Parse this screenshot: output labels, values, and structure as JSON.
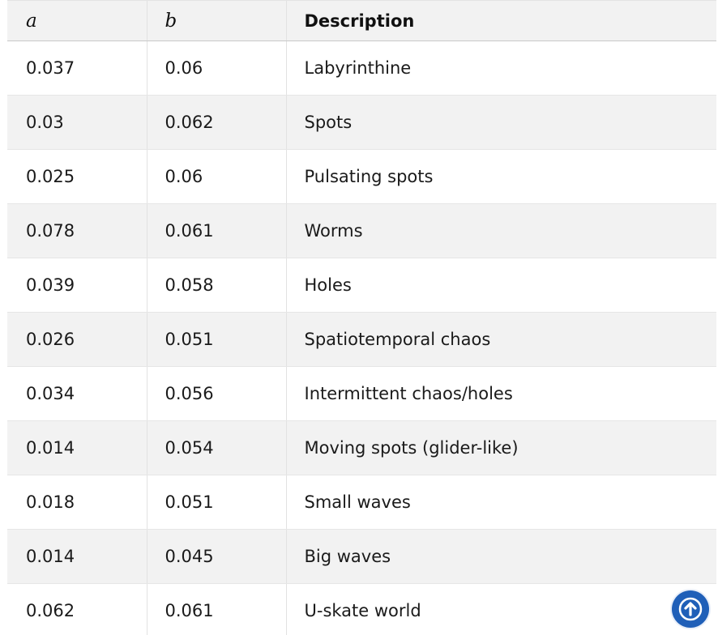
{
  "table": {
    "headers": [
      "a",
      "b",
      "Description"
    ],
    "rows": [
      [
        "0.037",
        "0.06",
        "Labyrinthine"
      ],
      [
        "0.03",
        "0.062",
        "Spots"
      ],
      [
        "0.025",
        "0.06",
        "Pulsating spots"
      ],
      [
        "0.078",
        "0.061",
        "Worms"
      ],
      [
        "0.039",
        "0.058",
        "Holes"
      ],
      [
        "0.026",
        "0.051",
        "Spatiotemporal chaos"
      ],
      [
        "0.034",
        "0.056",
        "Intermittent chaos/holes"
      ],
      [
        "0.014",
        "0.054",
        "Moving spots (glider-like)"
      ],
      [
        "0.018",
        "0.051",
        "Small waves"
      ],
      [
        "0.014",
        "0.045",
        "Big waves"
      ],
      [
        "0.062",
        "0.061",
        "U-skate world"
      ]
    ]
  },
  "scroll_top_button": {
    "icon": "arrow-up-icon",
    "color": "#1f5fb8"
  }
}
